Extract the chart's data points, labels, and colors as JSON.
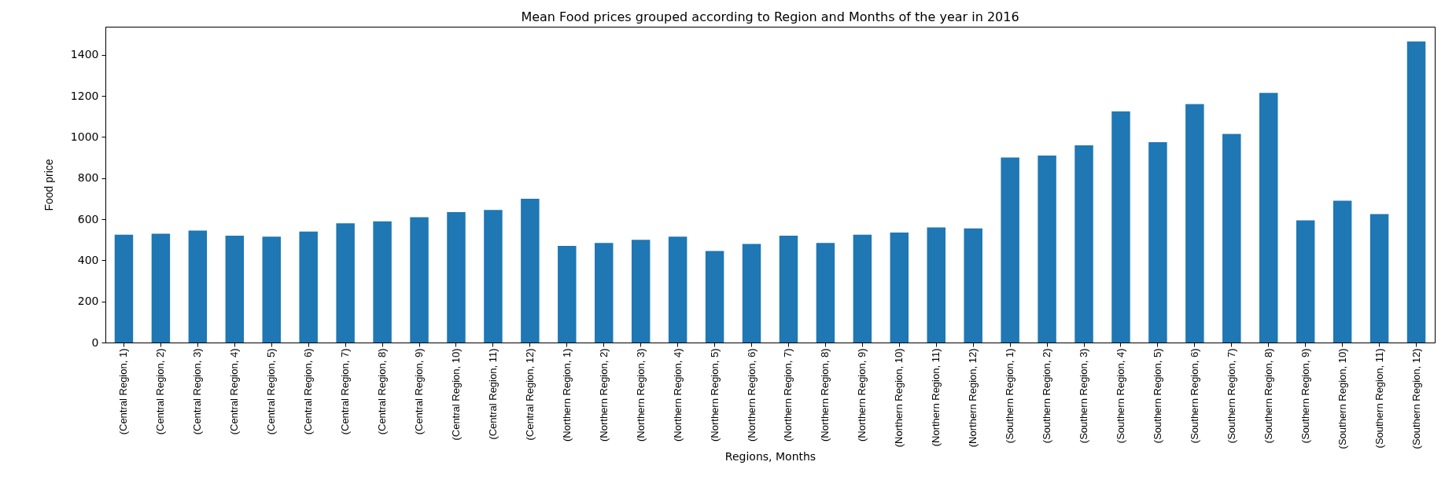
{
  "chart_data": {
    "type": "bar",
    "title": "Mean Food prices grouped according to Region and Months of the year in 2016",
    "xlabel": "Regions, Months",
    "ylabel": "Food price",
    "categories": [
      "(Central Region, 1)",
      "(Central Region, 2)",
      "(Central Region, 3)",
      "(Central Region, 4)",
      "(Central Region, 5)",
      "(Central Region, 6)",
      "(Central Region, 7)",
      "(Central Region, 8)",
      "(Central Region, 9)",
      "(Central Region, 10)",
      "(Central Region, 11)",
      "(Central Region, 12)",
      "(Northern Region, 1)",
      "(Northern Region, 2)",
      "(Northern Region, 3)",
      "(Northern Region, 4)",
      "(Northern Region, 5)",
      "(Northern Region, 6)",
      "(Northern Region, 7)",
      "(Northern Region, 8)",
      "(Northern Region, 9)",
      "(Northern Region, 10)",
      "(Northern Region, 11)",
      "(Northern Region, 12)",
      "(Southern Region, 1)",
      "(Southern Region, 2)",
      "(Southern Region, 3)",
      "(Southern Region, 4)",
      "(Southern Region, 5)",
      "(Southern Region, 6)",
      "(Southern Region, 7)",
      "(Southern Region, 8)",
      "(Southern Region, 9)",
      "(Southern Region, 10)",
      "(Southern Region, 11)",
      "(Southern Region, 12)"
    ],
    "values": [
      525,
      530,
      545,
      520,
      515,
      540,
      580,
      590,
      610,
      635,
      645,
      700,
      470,
      485,
      500,
      515,
      445,
      480,
      520,
      485,
      525,
      535,
      560,
      555,
      900,
      910,
      960,
      1125,
      975,
      1160,
      1015,
      1215,
      595,
      690,
      625,
      1465
    ],
    "color": "#1f77b4",
    "ylim": [
      0,
      1537
    ],
    "yticks": [
      0,
      200,
      400,
      600,
      800,
      1000,
      1200,
      1400
    ],
    "grid": false
  }
}
